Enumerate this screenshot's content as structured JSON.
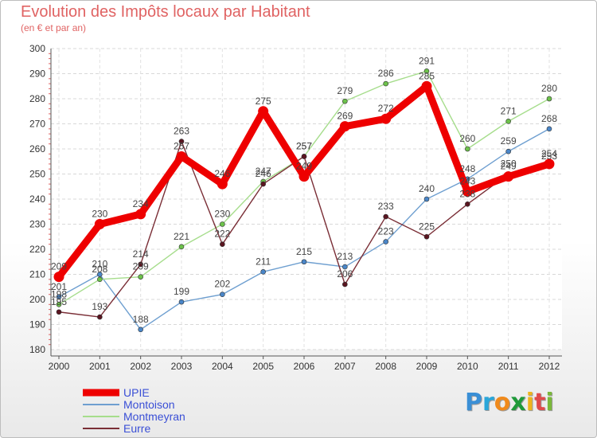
{
  "header": {
    "title": "Evolution des Impôts locaux par Habitant",
    "subtitle": "(en € et par an)"
  },
  "logo": {
    "text": "Proxiti",
    "letter_colors": [
      "#3a8fd6",
      "#2aa6d9",
      "#f08a1c",
      "#1f9a3a",
      "#f0b51c",
      "#e04a4a",
      "#7ab83a"
    ]
  },
  "chart_data": {
    "type": "line",
    "title": "Evolution des Impôts locaux par Habitant",
    "subtitle": "(en € et par an)",
    "xlabel": "",
    "ylabel": "",
    "ylim": [
      180,
      300
    ],
    "y_ticks": [
      180,
      190,
      200,
      210,
      220,
      230,
      240,
      250,
      260,
      270,
      280,
      290,
      300
    ],
    "grid": true,
    "legend_position": "bottom-left",
    "categories": [
      "2000",
      "2001",
      "2002",
      "2003",
      "2004",
      "2005",
      "2006",
      "2007",
      "2008",
      "2009",
      "2010",
      "2011",
      "2012"
    ],
    "series": [
      {
        "name": "UPIE",
        "values": [
          209,
          230,
          234,
          257,
          246,
          275,
          249,
          269,
          272,
          285,
          243,
          249,
          254
        ],
        "color": "#ee0000",
        "marker": "#ee0000",
        "bold": true
      },
      {
        "name": "Montoison",
        "values": [
          201,
          210,
          188,
          199,
          202,
          211,
          215,
          213,
          223,
          240,
          248,
          259,
          268
        ],
        "color": "#6e9fd0",
        "marker": "#4a86c8",
        "bold": false
      },
      {
        "name": "Montmeyran",
        "values": [
          198,
          208,
          209,
          221,
          230,
          247,
          257,
          279,
          286,
          291,
          260,
          271,
          280
        ],
        "color": "#a6dd8c",
        "marker": "#6cc24a",
        "bold": false
      },
      {
        "name": "Eurre",
        "values": [
          195,
          193,
          214,
          263,
          222,
          246,
          257,
          206,
          233,
          225,
          238,
          250,
          253
        ],
        "color": "#7a2e36",
        "marker": "#5a1520",
        "bold": false
      }
    ]
  }
}
